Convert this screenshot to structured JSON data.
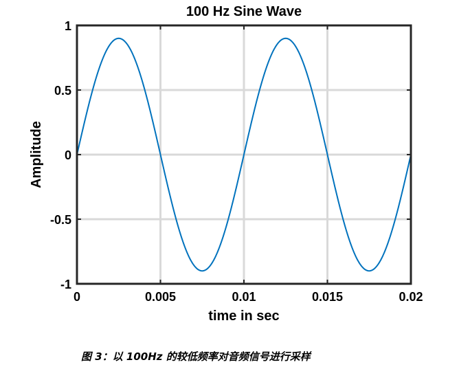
{
  "chart_data": {
    "type": "line",
    "title": "100 Hz Sine Wave",
    "xlabel": "time in sec",
    "ylabel": "Amplitude",
    "xlim": [
      0,
      0.02
    ],
    "ylim": [
      -1,
      1
    ],
    "xticks": [
      0,
      0.005,
      0.01,
      0.015,
      0.02
    ],
    "xtick_labels": [
      "0",
      "0.005",
      "0.01",
      "0.015",
      "0.02"
    ],
    "yticks": [
      -1,
      -0.5,
      0,
      0.5,
      1
    ],
    "ytick_labels": [
      "-1",
      "-0.5",
      "0",
      "0.5",
      "1"
    ],
    "grid": true,
    "series": [
      {
        "color": "#0072bd",
        "function": "0.9*sin(2*pi*100*t)",
        "amplitude": 0.9,
        "frequency_hz": 100,
        "x": [
          0,
          0.0025,
          0.005,
          0.0075,
          0.01,
          0.0125,
          0.015,
          0.0175,
          0.02
        ],
        "values": [
          0,
          0.9,
          0,
          -0.9,
          0,
          0.9,
          0,
          -0.9,
          0
        ]
      }
    ]
  },
  "caption": {
    "text": "图 3：以 100Hz 的较低频率对音频信号进行采样"
  }
}
